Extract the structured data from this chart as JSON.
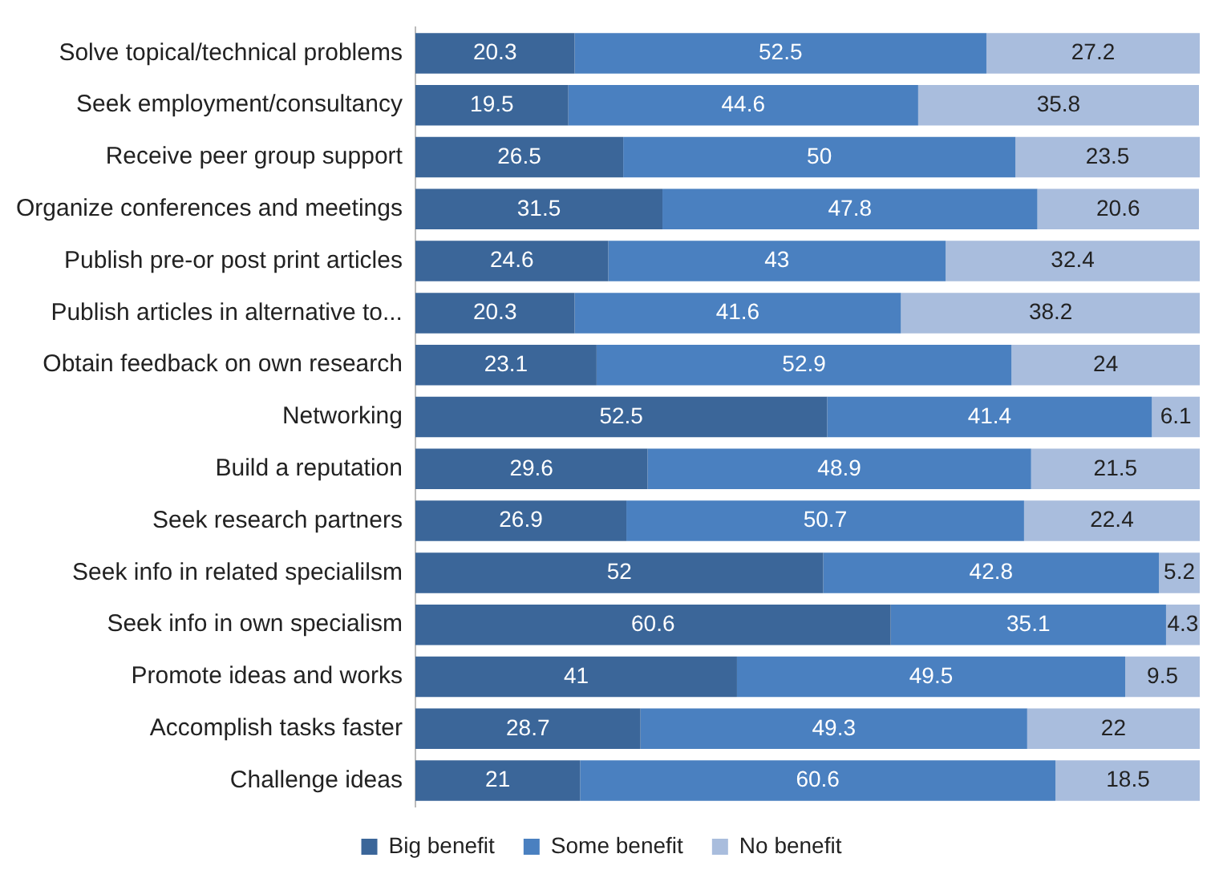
{
  "chart_data": {
    "type": "bar",
    "orientation": "horizontal",
    "stacked": true,
    "data_labels": true,
    "legend": "bottom",
    "tick_labels": "y",
    "xlim": [
      0,
      100
    ],
    "categories": [
      "Solve topical/technical problems",
      "Seek employment/consultancy",
      "Receive peer group support",
      "Organize conferences and meetings",
      "Publish pre-or post print articles",
      "Publish articles in alternative to...",
      "Obtain feedback on own research",
      "Networking",
      "Build a reputation",
      "Seek research partners",
      "Seek info in related specialilsm",
      "Seek info in own specialism",
      "Promote ideas and works",
      "Accomplish tasks faster",
      "Challenge ideas"
    ],
    "series": [
      {
        "name": "Big benefit",
        "color": "#3b6699",
        "values": [
          20.3,
          19.5,
          26.5,
          31.5,
          24.6,
          20.3,
          23.1,
          52.5,
          29.6,
          26.9,
          52,
          60.6,
          41,
          28.7,
          21
        ]
      },
      {
        "name": "Some benefit",
        "color": "#4a80c0",
        "values": [
          52.5,
          44.6,
          50,
          47.8,
          43,
          41.6,
          52.9,
          41.4,
          48.9,
          50.7,
          42.8,
          35.1,
          49.5,
          49.3,
          60.6
        ]
      },
      {
        "name": "No benefit",
        "color": "#a9bddd",
        "values": [
          27.2,
          35.8,
          23.5,
          20.6,
          32.4,
          38.2,
          24,
          6.1,
          21.5,
          22.4,
          5.2,
          4.3,
          9.5,
          22,
          18.5
        ]
      }
    ]
  }
}
